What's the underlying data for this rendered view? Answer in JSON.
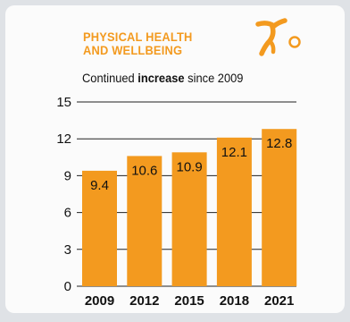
{
  "header": {
    "title_line1": "PHYSICAL HEALTH",
    "title_line2": "AND WELLBEING",
    "subtitle_pre": "Continued ",
    "subtitle_bold": "increase",
    "subtitle_post": " since 2009",
    "logo_icon": "person-exercising-icon"
  },
  "colors": {
    "accent": "#f39a1f",
    "text": "#111111",
    "panel": "#fbfbfb",
    "background": "#dfe2e6"
  },
  "chart_data": {
    "type": "bar",
    "categories": [
      "2009",
      "2012",
      "2015",
      "2018",
      "2021"
    ],
    "values": [
      9.4,
      10.6,
      10.9,
      12.1,
      12.8
    ],
    "data_labels": [
      "9.4",
      "10.6",
      "10.9",
      "12.1",
      "12.8"
    ],
    "yticks": [
      "0",
      "3",
      "6",
      "9",
      "12",
      "15"
    ],
    "ylim": [
      0,
      15
    ],
    "grid": true,
    "legend": "none",
    "bar_color": "#f39a1f"
  }
}
